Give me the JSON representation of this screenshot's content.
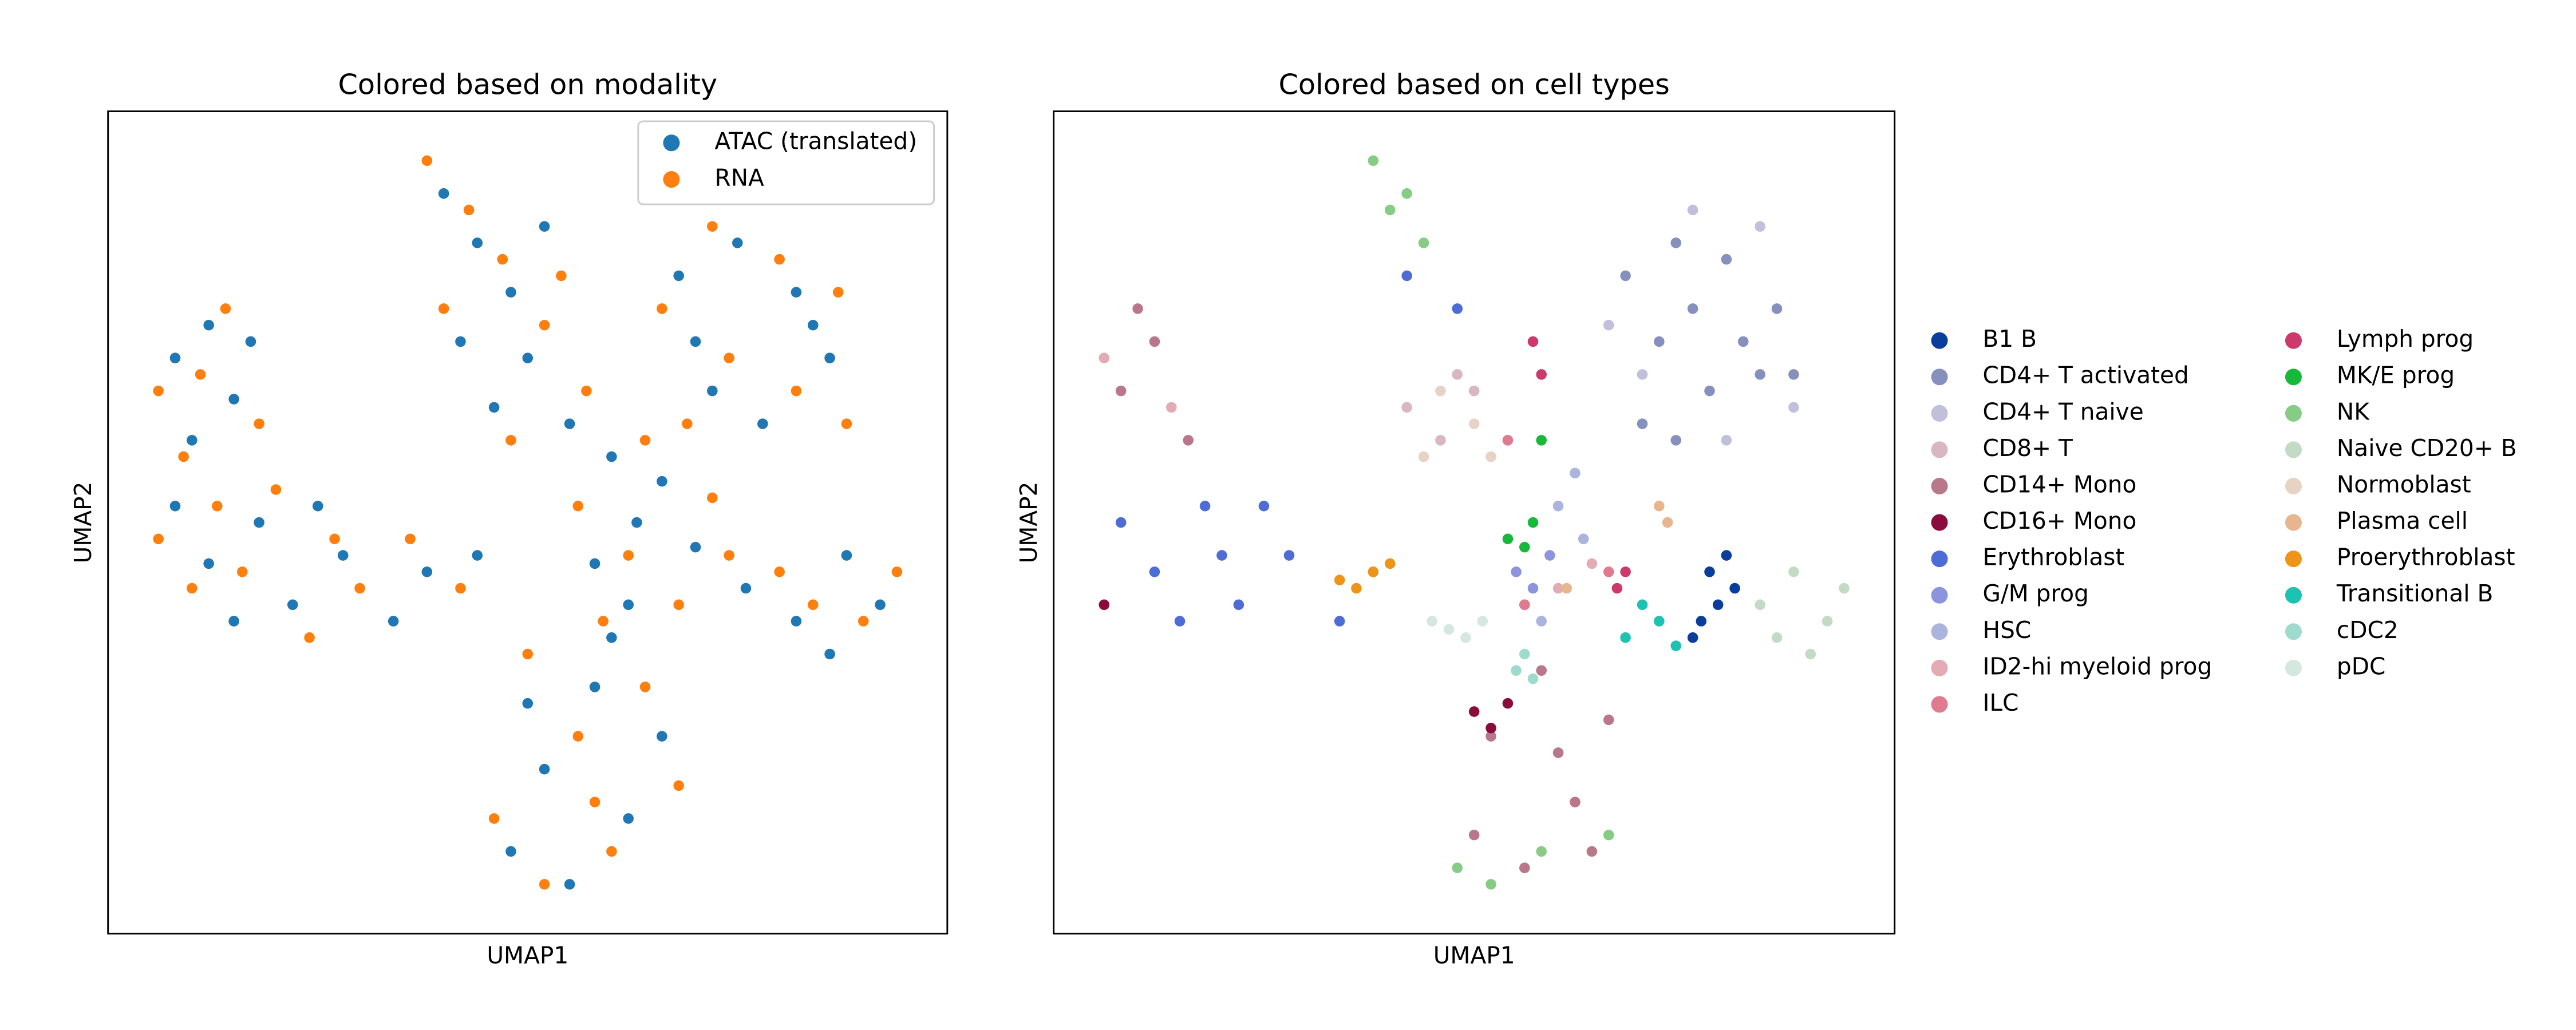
{
  "chart_data": [
    {
      "type": "scatter",
      "title": "Colored based on modality",
      "x_label": "UMAP1",
      "y_label": "UMAP2",
      "xlim": [
        0,
        100
      ],
      "ylim": [
        0,
        100
      ],
      "legend": "upper right",
      "legend_columns": 1,
      "series": [
        {
          "name": "ATAC (translated)",
          "color": "#1f77b4",
          "x": [
            8,
            12,
            15,
            10,
            17,
            8,
            12,
            18,
            22,
            28,
            34,
            15,
            25,
            38,
            44,
            40,
            44,
            48,
            42,
            50,
            55,
            46,
            52,
            68,
            75,
            82,
            86,
            72,
            78,
            84,
            70,
            60,
            63,
            58,
            66,
            70,
            62,
            76,
            82,
            88,
            92,
            86,
            48,
            55,
            62,
            66,
            58,
            52,
            60,
            50
          ],
          "y": [
            70,
            74,
            65,
            60,
            72,
            52,
            45,
            50,
            40,
            46,
            38,
            38,
            52,
            44,
            46,
            90,
            84,
            78,
            72,
            70,
            62,
            64,
            86,
            80,
            84,
            78,
            70,
            66,
            62,
            74,
            72,
            58,
            50,
            45,
            55,
            47,
            40,
            42,
            38,
            46,
            40,
            34,
            10,
            6,
            14,
            24,
            30,
            20,
            36,
            28
          ]
        },
        {
          "name": "RNA",
          "color": "#ff7f0e",
          "x": [
            6,
            11,
            14,
            18,
            9,
            6,
            10,
            16,
            20,
            24,
            30,
            36,
            13,
            27,
            42,
            38,
            43,
            47,
            40,
            52,
            57,
            48,
            54,
            66,
            72,
            80,
            87,
            74,
            82,
            88,
            69,
            56,
            62,
            72,
            68,
            59,
            64,
            74,
            80,
            90,
            94,
            84,
            46,
            52,
            60,
            68,
            56,
            64,
            50,
            58
          ],
          "y": [
            66,
            68,
            76,
            62,
            58,
            48,
            42,
            44,
            54,
            36,
            42,
            48,
            52,
            48,
            42,
            94,
            88,
            82,
            76,
            74,
            66,
            60,
            80,
            76,
            86,
            82,
            78,
            70,
            66,
            62,
            62,
            52,
            46,
            53,
            40,
            38,
            60,
            46,
            44,
            38,
            44,
            40,
            14,
            6,
            10,
            18,
            24,
            30,
            34,
            16
          ]
        }
      ]
    },
    {
      "type": "scatter",
      "title": "Colored based on cell types",
      "x_label": "UMAP1",
      "y_label": "UMAP2",
      "xlim": [
        0,
        100
      ],
      "ylim": [
        0,
        100
      ],
      "legend": "outside right",
      "legend_columns": 2,
      "series": [
        {
          "name": "B1 B",
          "color": "#0b3d9c",
          "x": [
            78,
            79,
            80,
            81,
            77,
            76
          ],
          "y": [
            44,
            40,
            46,
            42,
            38,
            36
          ]
        },
        {
          "name": "CD4+ T activated",
          "color": "#8690bf",
          "x": [
            68,
            74,
            80,
            86,
            72,
            78,
            84,
            70,
            76,
            82,
            88,
            74
          ],
          "y": [
            80,
            84,
            82,
            76,
            72,
            66,
            68,
            62,
            76,
            72,
            68,
            60
          ]
        },
        {
          "name": "CD4+ T naive",
          "color": "#c0bfdc",
          "x": [
            66,
            76,
            84,
            88,
            80,
            70
          ],
          "y": [
            74,
            88,
            86,
            64,
            60,
            68
          ]
        },
        {
          "name": "CD8+ T",
          "color": "#d9b6c3",
          "x": [
            42,
            46,
            50,
            54,
            48
          ],
          "y": [
            64,
            60,
            66,
            60,
            68
          ]
        },
        {
          "name": "CD14+ Mono",
          "color": "#b87889",
          "x": [
            8,
            12,
            16,
            10,
            50,
            56,
            62,
            66,
            58,
            52,
            60,
            64
          ],
          "y": [
            66,
            72,
            60,
            76,
            12,
            8,
            16,
            26,
            32,
            24,
            22,
            10
          ]
        },
        {
          "name": "CD16+ Mono",
          "color": "#8a0c3c",
          "x": [
            50,
            52,
            54,
            6
          ],
          "y": [
            27,
            25,
            28,
            40
          ]
        },
        {
          "name": "Erythroblast",
          "color": "#4e6cd6",
          "x": [
            8,
            12,
            18,
            22,
            28,
            34,
            15,
            25,
            38,
            20,
            42,
            48
          ],
          "y": [
            50,
            44,
            52,
            40,
            46,
            38,
            38,
            52,
            44,
            46,
            80,
            76
          ]
        },
        {
          "name": "G/M prog",
          "color": "#8b94dd",
          "x": [
            55,
            57,
            59,
            56
          ],
          "y": [
            44,
            42,
            46,
            40
          ]
        },
        {
          "name": "HSC",
          "color": "#aab4dc",
          "x": [
            60,
            63,
            58,
            62
          ],
          "y": [
            52,
            48,
            38,
            56
          ]
        },
        {
          "name": "ID2-hi myeloid prog",
          "color": "#e3abb4",
          "x": [
            14,
            6,
            60,
            64
          ],
          "y": [
            64,
            70,
            42,
            45
          ]
        },
        {
          "name": "ILC",
          "color": "#df7a8f",
          "x": [
            66,
            56,
            54
          ],
          "y": [
            44,
            40,
            60
          ]
        },
        {
          "name": "Lymph prog",
          "color": "#cc396a",
          "x": [
            67,
            68,
            57,
            58
          ],
          "y": [
            42,
            44,
            72,
            68
          ]
        },
        {
          "name": "MK/E prog",
          "color": "#18b83b",
          "x": [
            54,
            56,
            58,
            57
          ],
          "y": [
            48,
            47,
            60,
            50
          ]
        },
        {
          "name": "NK",
          "color": "#87cc85",
          "x": [
            38,
            40,
            44,
            42,
            52,
            58,
            66,
            48
          ],
          "y": [
            94,
            88,
            84,
            90,
            6,
            10,
            12,
            8
          ]
        },
        {
          "name": "Naive CD20+ B",
          "color": "#c3dac4",
          "x": [
            84,
            88,
            92,
            90,
            94,
            86
          ],
          "y": [
            40,
            44,
            38,
            34,
            42,
            36
          ]
        },
        {
          "name": "Normoblast",
          "color": "#e7d2c6",
          "x": [
            44,
            50,
            46,
            52
          ],
          "y": [
            58,
            62,
            66,
            58
          ]
        },
        {
          "name": "Plasma cell",
          "color": "#e7b58e",
          "x": [
            72,
            73,
            61
          ],
          "y": [
            52,
            50,
            42
          ]
        },
        {
          "name": "Proerythroblast",
          "color": "#ee9418",
          "x": [
            36,
            38,
            40,
            34
          ],
          "y": [
            42,
            44,
            45,
            43
          ]
        },
        {
          "name": "Transitional B",
          "color": "#1cc3b3",
          "x": [
            70,
            72,
            74,
            68
          ],
          "y": [
            40,
            38,
            35,
            36
          ]
        },
        {
          "name": "cDC2",
          "color": "#9edbce",
          "x": [
            55,
            56,
            57
          ],
          "y": [
            32,
            34,
            31
          ]
        },
        {
          "name": "pDC",
          "color": "#d4e8e0",
          "x": [
            47,
            49,
            51,
            45
          ],
          "y": [
            37,
            36,
            38,
            38
          ]
        }
      ]
    }
  ]
}
